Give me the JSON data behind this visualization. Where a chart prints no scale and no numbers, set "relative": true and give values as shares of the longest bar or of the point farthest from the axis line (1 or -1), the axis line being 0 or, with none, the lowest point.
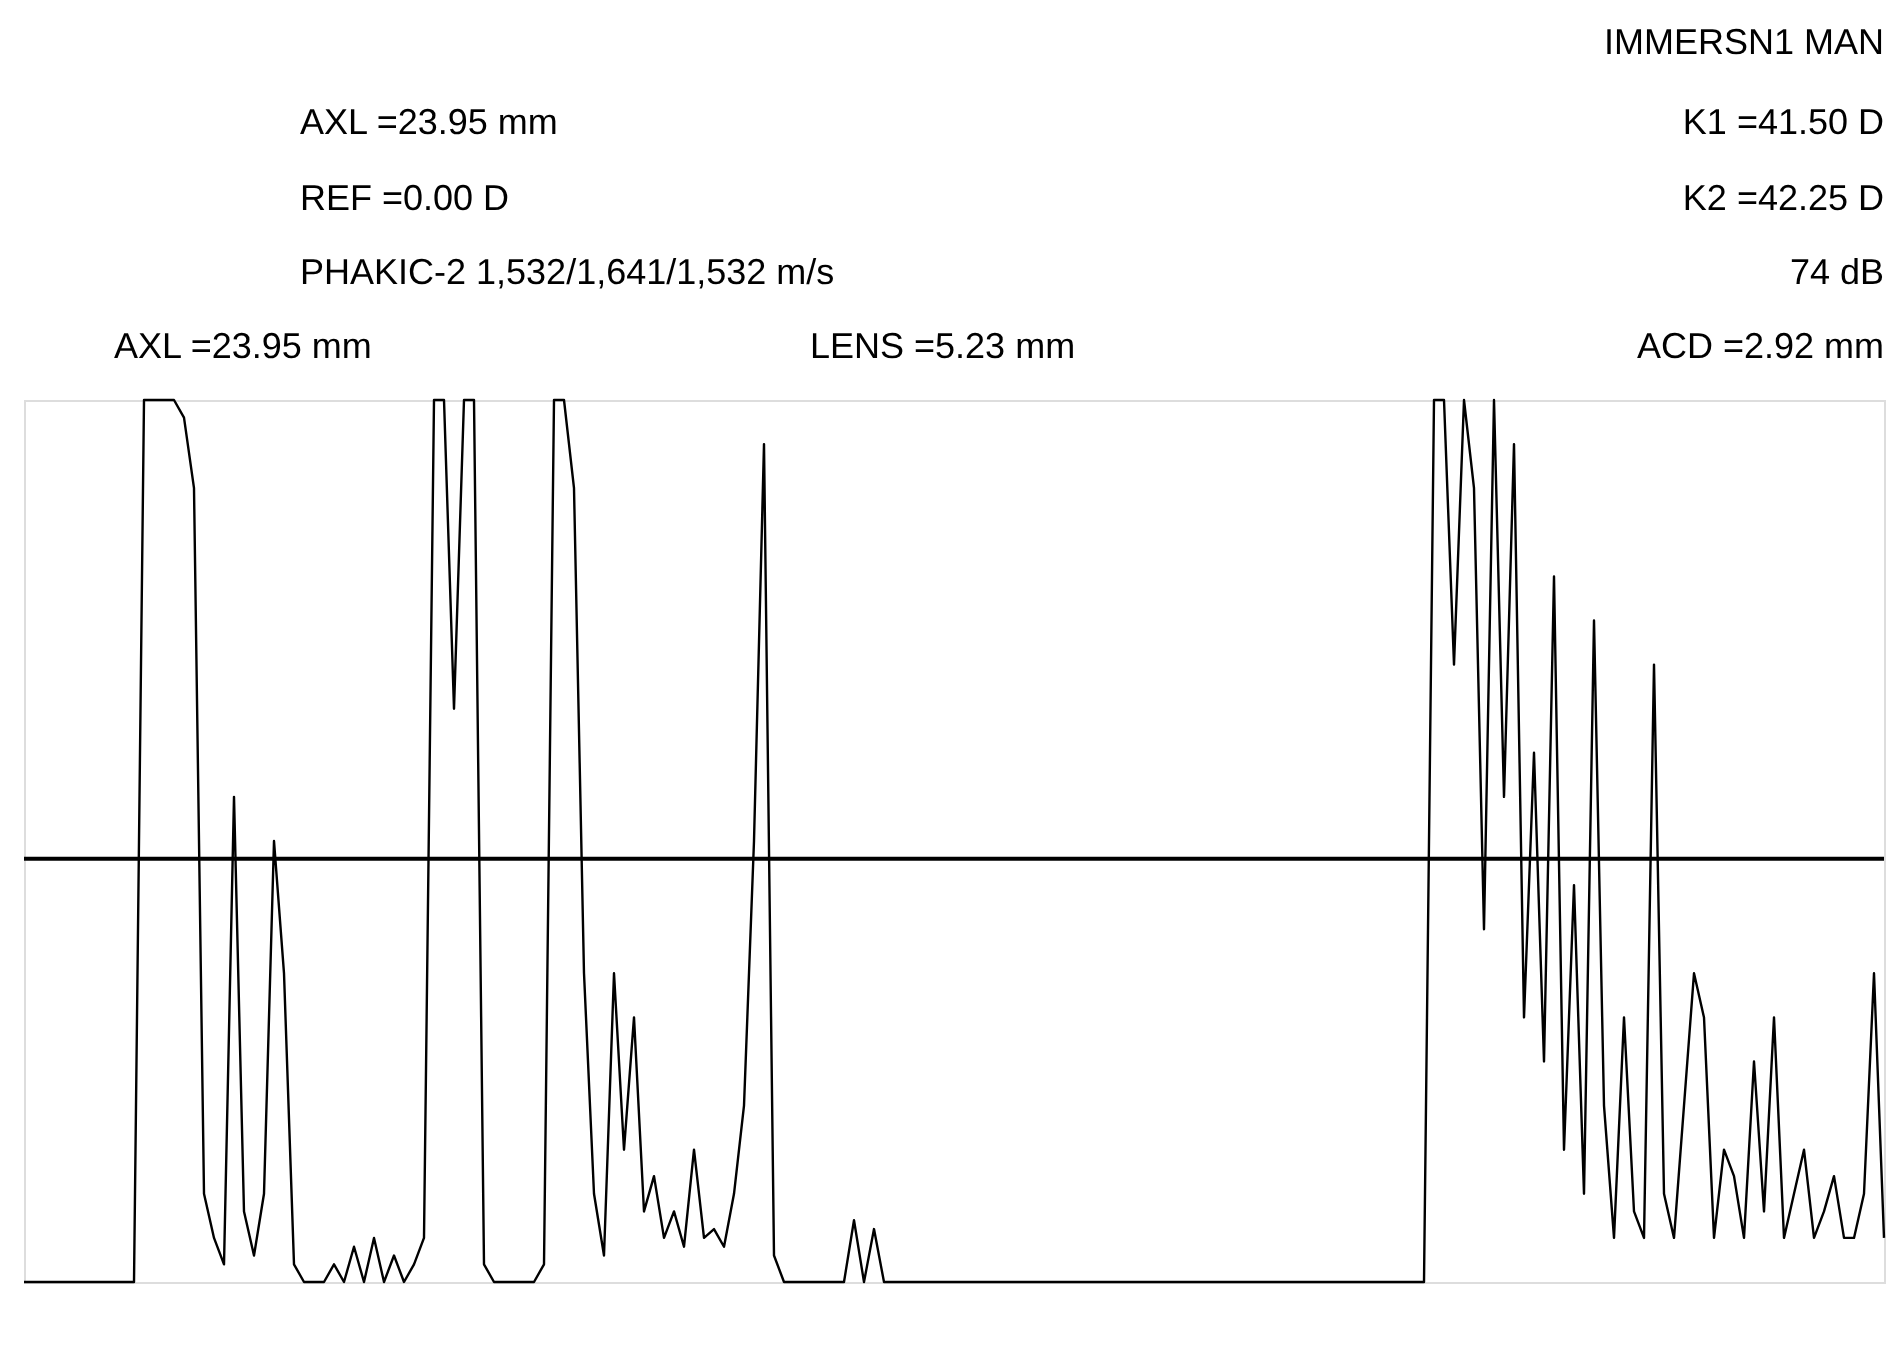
{
  "chart_data": {
    "type": "line",
    "relative": true,
    "annotations": [
      "IMMERSN1 MAN",
      "AXL =23.95 mm",
      "K1 =41.50 D",
      "REF =0.00 D",
      "K2 =42.25 D",
      "PHAKIC-2 1,532/1,641/1,532 m/s",
      "74 dB",
      "AXL =23.95 mm",
      "LENS =5.23 mm",
      "ACD =2.92 mm"
    ],
    "categories": [
      null,
      null,
      null,
      null,
      null,
      null,
      null,
      null,
      null,
      null,
      null,
      null,
      null,
      null,
      null,
      null,
      null,
      null,
      null,
      null,
      null,
      null,
      null,
      null,
      null,
      null,
      null,
      null,
      null,
      null,
      null,
      null,
      null,
      null,
      null,
      null,
      null,
      null,
      null,
      null,
      null,
      null,
      null,
      null,
      null,
      null,
      null,
      null,
      null,
      null,
      null,
      null,
      null,
      null,
      null,
      null,
      null,
      null,
      null,
      null,
      null,
      null,
      null,
      null,
      null,
      null,
      null,
      null,
      null,
      null,
      null,
      null,
      null,
      null,
      null,
      null,
      null,
      null,
      null,
      null,
      null,
      null,
      null,
      null,
      null,
      null,
      null,
      null,
      null,
      null,
      null,
      null,
      null,
      null,
      null,
      null,
      null,
      null,
      null,
      null,
      null,
      null,
      null,
      null,
      null,
      null,
      null,
      null,
      null,
      null,
      null,
      null,
      null,
      null,
      null,
      null,
      null,
      null,
      null,
      null,
      null,
      null,
      null,
      null,
      null,
      null,
      null,
      null,
      null,
      null,
      null,
      null,
      null,
      null,
      null,
      null,
      null,
      null,
      null,
      null,
      null,
      null,
      null,
      null,
      null,
      null,
      null,
      null,
      null,
      null,
      null,
      null,
      null,
      null,
      null,
      null,
      null,
      null,
      null,
      null,
      null,
      null,
      null,
      null,
      null,
      null,
      null,
      null,
      null,
      null,
      null,
      null,
      null,
      null,
      null,
      null,
      null,
      null,
      null,
      null,
      null,
      null,
      null,
      null,
      null,
      null,
      null
    ],
    "series": [
      {
        "color": "#000000",
        "values": [
          0,
          0,
          0,
          0,
          0,
          0,
          0,
          0,
          0,
          0,
          0,
          0,
          1,
          1,
          1,
          1,
          0.98,
          0.9,
          0.1,
          0.05,
          0.02,
          0.55,
          0.08,
          0.03,
          0.1,
          0.5,
          0.35,
          0.02,
          0,
          0,
          0,
          0.02,
          0,
          0.04,
          0,
          0.05,
          0,
          0.03,
          0,
          0.02,
          0.05,
          1,
          1,
          0.65,
          1,
          1,
          0.02,
          0,
          0,
          0,
          0,
          0,
          0.02,
          1,
          1,
          0.9,
          0.35,
          0.1,
          0.03,
          0.35,
          0.15,
          0.3,
          0.08,
          0.12,
          0.05,
          0.08,
          0.04,
          0.15,
          0.05,
          0.06,
          0.04,
          0.1,
          0.2,
          0.5,
          0.95,
          0.03,
          0,
          0,
          0,
          0,
          0,
          0,
          0,
          0.07,
          0,
          0.06,
          0,
          0,
          0,
          0,
          0,
          0,
          0,
          0,
          0,
          0,
          0,
          0,
          0,
          0,
          0,
          0,
          0,
          0,
          0,
          0,
          0,
          0,
          0,
          0,
          0,
          0,
          0,
          0,
          0,
          0,
          0,
          0,
          0,
          0,
          0,
          0,
          0,
          0,
          0,
          0,
          0,
          0,
          0,
          0,
          0,
          0,
          0,
          0,
          0,
          0,
          0,
          0,
          0,
          0,
          0,
          1,
          1,
          0.7,
          1,
          0.9,
          0.4,
          1,
          0.55,
          0.95,
          0.3,
          0.6,
          0.25,
          0.8,
          0.15,
          0.45,
          0.1,
          0.75,
          0.2,
          0.05,
          0.3,
          0.08,
          0.05,
          0.7,
          0.1,
          0.05,
          0.2,
          0.35,
          0.3,
          0.05,
          0.15,
          0.12,
          0.05,
          0.25,
          0.08,
          0.3,
          0.05,
          0.1,
          0.15,
          0.05,
          0.08,
          0.12,
          0.05,
          0.05,
          0.1,
          0.35,
          0.05
        ]
      }
    ],
    "ref_lines": [
      {
        "axis": "y",
        "value": 0.48,
        "color": "#000000"
      }
    ]
  }
}
